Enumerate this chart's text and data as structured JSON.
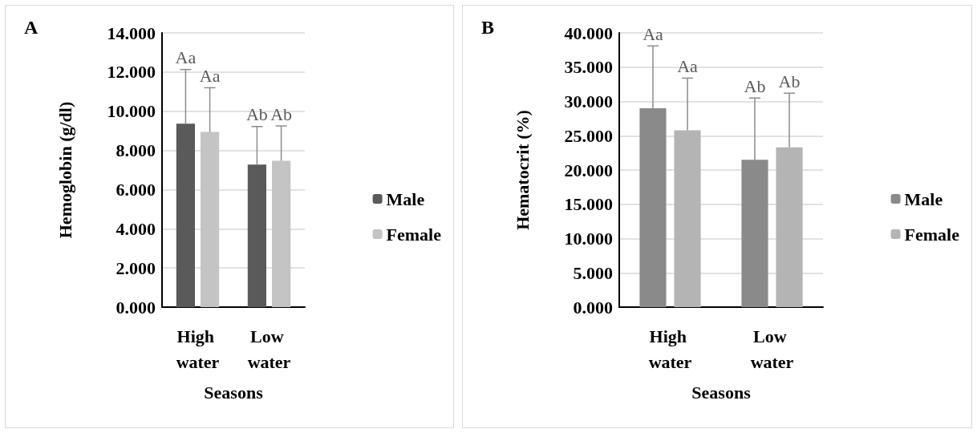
{
  "chart_data": [
    {
      "type": "bar",
      "title": "A",
      "xlabel": "Seasons",
      "ylabel": "Hemoglobin (g/dl)",
      "categories": [
        "High water",
        "Low water"
      ],
      "series": [
        {
          "name": "Male",
          "color": "#5a5a5a",
          "values": [
            9.36,
            7.28
          ],
          "errors": [
            [
              9.36,
              12.13
            ],
            [
              7.28,
              9.22
            ]
          ]
        },
        {
          "name": "Female",
          "color": "#c4c4c4",
          "values": [
            8.94,
            7.47
          ],
          "errors": [
            [
              8.94,
              11.2
            ],
            [
              7.47,
              9.25
            ]
          ]
        }
      ],
      "ylim": [
        0,
        14
      ],
      "yticks": [
        {
          "value": 0,
          "label": "0.000"
        },
        {
          "value": 2,
          "label": "2.000"
        },
        {
          "value": 4,
          "label": "4.000"
        },
        {
          "value": 6,
          "label": "6.000"
        },
        {
          "value": 8,
          "label": "8.000"
        },
        {
          "value": 10,
          "label": "10.000"
        },
        {
          "value": 12,
          "label": "12.000"
        },
        {
          "value": 14,
          "label": "14.000"
        }
      ],
      "annotations": [
        "Aa",
        "Aa",
        "Ab",
        "Ab"
      ],
      "grid": "y",
      "legend": "right"
    },
    {
      "type": "bar",
      "title": "B",
      "xlabel": "Seasons",
      "ylabel": "Hematocrit (%)",
      "categories": [
        "High water",
        "Low water"
      ],
      "series": [
        {
          "name": "Male",
          "color": "#8a8a8a",
          "values": [
            29.0,
            21.5
          ],
          "errors": [
            [
              29.0,
              38.1
            ],
            [
              21.5,
              30.5
            ]
          ]
        },
        {
          "name": "Female",
          "color": "#b4b4b4",
          "values": [
            25.8,
            23.3
          ],
          "errors": [
            [
              25.8,
              33.4
            ],
            [
              23.3,
              31.2
            ]
          ]
        }
      ],
      "ylim": [
        0,
        40
      ],
      "yticks": [
        {
          "value": 0,
          "label": "0.000"
        },
        {
          "value": 5,
          "label": "5.000"
        },
        {
          "value": 10,
          "label": "10.000"
        },
        {
          "value": 15,
          "label": "15.000"
        },
        {
          "value": 20,
          "label": "20.000"
        },
        {
          "value": 25,
          "label": "25.000"
        },
        {
          "value": 30,
          "label": "30.000"
        },
        {
          "value": 35,
          "label": "35.000"
        },
        {
          "value": 40,
          "label": "40.000"
        }
      ],
      "annotations": [
        "Aa",
        "Aa",
        "Ab",
        "Ab"
      ],
      "grid": "y",
      "legend": "right"
    }
  ]
}
